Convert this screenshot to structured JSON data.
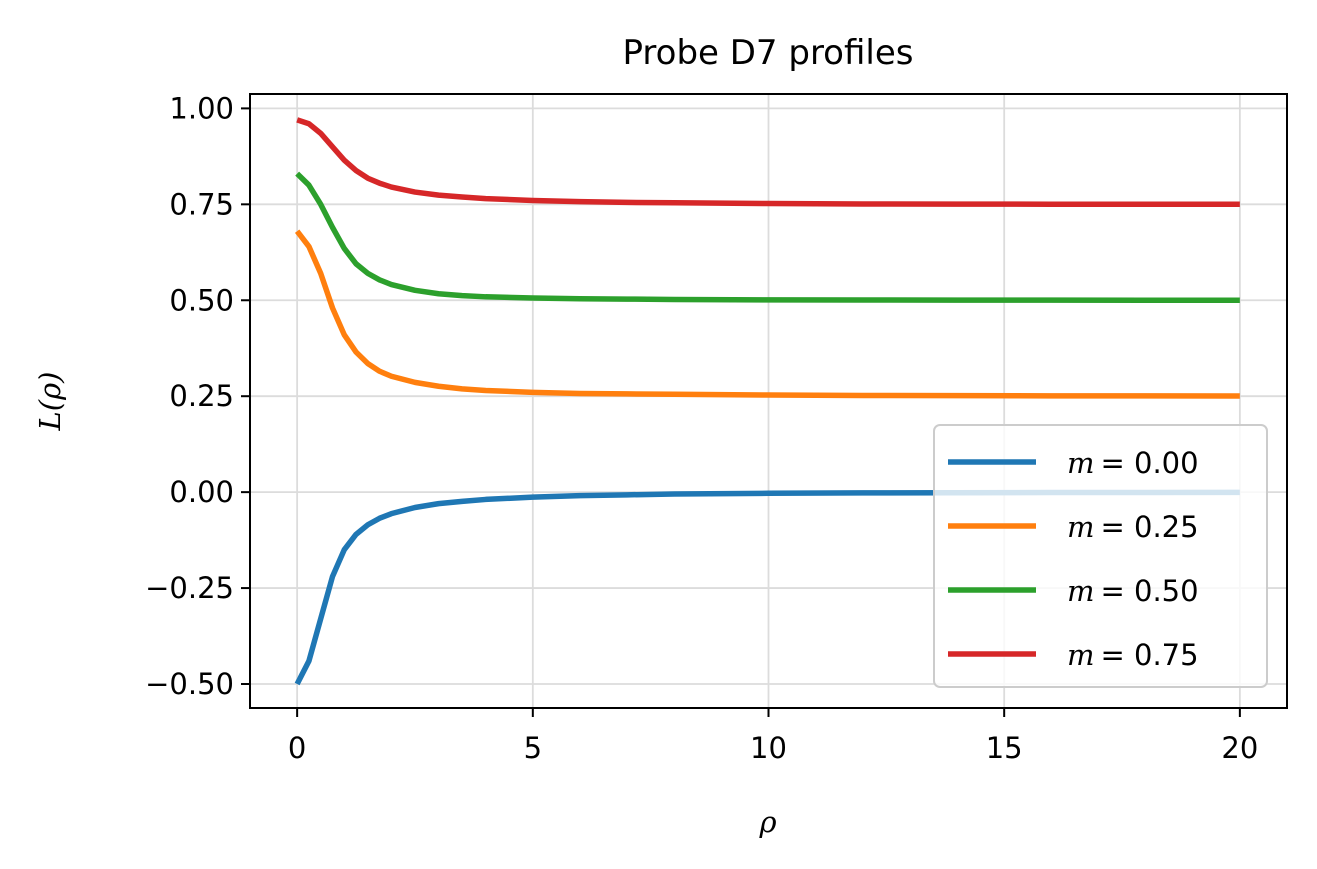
{
  "chart_data": {
    "type": "line",
    "title": "Probe D7 profiles",
    "xlabel": "ρ",
    "ylabel": "L(ρ)",
    "xlim": [
      -1,
      21
    ],
    "ylim": [
      -0.5625,
      1.0375
    ],
    "grid": true,
    "legend_position": "lower-right",
    "xticks": [
      0,
      5,
      10,
      15,
      20
    ],
    "xtick_labels": [
      "0",
      "5",
      "10",
      "15",
      "20"
    ],
    "yticks": [
      -0.5,
      -0.25,
      0,
      0.25,
      0.5,
      0.75,
      1.0
    ],
    "ytick_labels": [
      "−0.50",
      "−0.25",
      "0.00",
      "0.25",
      "0.50",
      "0.75",
      "1.00"
    ],
    "x": [
      0,
      0.25,
      0.5,
      0.75,
      1.0,
      1.25,
      1.5,
      1.75,
      2.0,
      2.5,
      3.0,
      3.5,
      4.0,
      5.0,
      6.0,
      7.0,
      8.0,
      10.0,
      12.0,
      14.0,
      16.0,
      18.0,
      20.0
    ],
    "series": [
      {
        "name_prefix": "m",
        "name_value": "= 0.00",
        "color": "#1f77b4",
        "values": [
          -0.5,
          -0.44,
          -0.33,
          -0.22,
          -0.15,
          -0.11,
          -0.085,
          -0.068,
          -0.056,
          -0.04,
          -0.03,
          -0.024,
          -0.019,
          -0.013,
          -0.009,
          -0.007,
          -0.005,
          -0.003,
          -0.002,
          -0.0015,
          -0.001,
          -0.0008,
          -0.0006
        ]
      },
      {
        "name_prefix": "m",
        "name_value": "= 0.25",
        "color": "#ff7f0e",
        "values": [
          0.68,
          0.64,
          0.57,
          0.48,
          0.41,
          0.365,
          0.335,
          0.315,
          0.302,
          0.286,
          0.276,
          0.269,
          0.265,
          0.26,
          0.257,
          0.256,
          0.255,
          0.253,
          0.252,
          0.2515,
          0.251,
          0.2507,
          0.2505
        ]
      },
      {
        "name_prefix": "m",
        "name_value": "= 0.50",
        "color": "#2ca02c",
        "values": [
          0.83,
          0.8,
          0.75,
          0.69,
          0.635,
          0.595,
          0.57,
          0.553,
          0.541,
          0.526,
          0.517,
          0.512,
          0.509,
          0.506,
          0.504,
          0.503,
          0.502,
          0.501,
          0.5008,
          0.5005,
          0.5003,
          0.5002,
          0.5001
        ]
      },
      {
        "name_prefix": "m",
        "name_value": "= 0.75",
        "color": "#d62728",
        "values": [
          0.97,
          0.96,
          0.935,
          0.9,
          0.865,
          0.838,
          0.818,
          0.805,
          0.795,
          0.782,
          0.774,
          0.769,
          0.765,
          0.76,
          0.757,
          0.755,
          0.754,
          0.752,
          0.751,
          0.7506,
          0.7503,
          0.7502,
          0.7501
        ]
      }
    ]
  }
}
